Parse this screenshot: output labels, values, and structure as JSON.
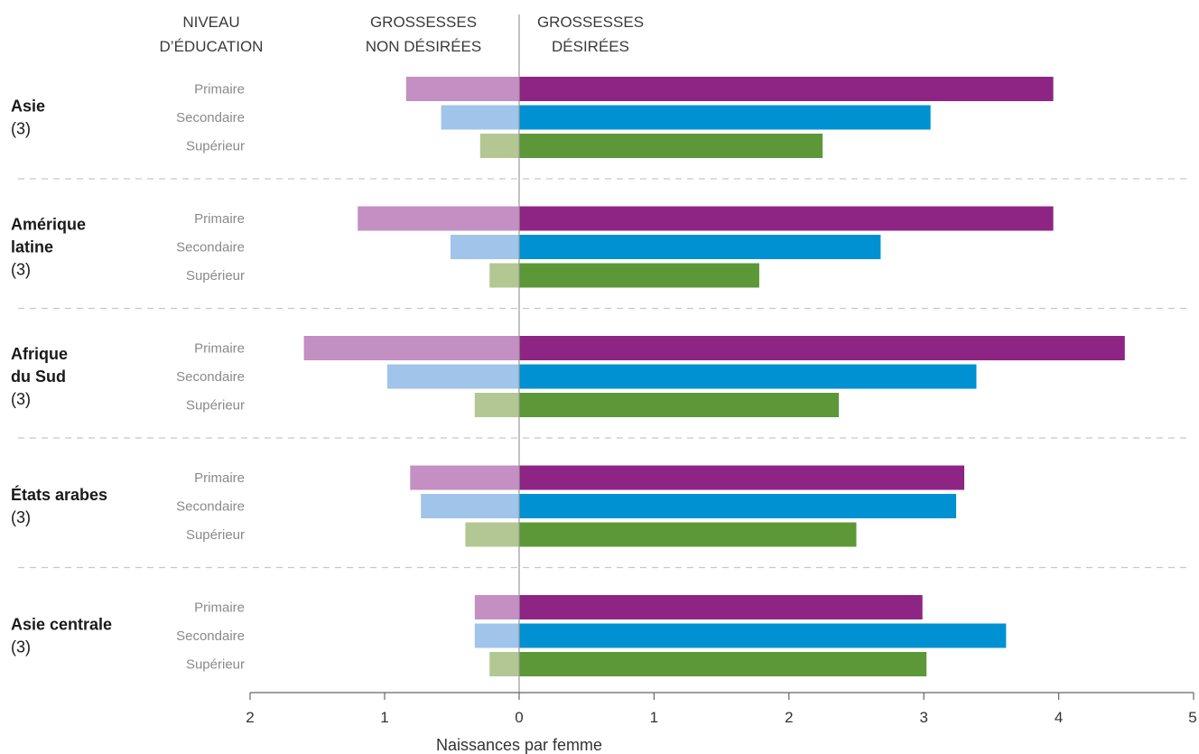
{
  "chart_data": {
    "type": "bar",
    "headers": {
      "education": [
        "NIVEAU",
        "D’ÉDUCATION"
      ],
      "unwanted": [
        "GROSSESSES",
        "NON DÉSIRÉES"
      ],
      "wanted": [
        "GROSSESSES",
        "DÉSIRÉES"
      ]
    },
    "xlabel": "Naissances par femme",
    "left_ticks": [
      "2",
      "1",
      "0"
    ],
    "right_ticks": [
      "1",
      "2",
      "3",
      "4",
      "5"
    ],
    "xlim_unwanted": [
      0,
      2
    ],
    "xlim_wanted": [
      0,
      5
    ],
    "levels": [
      "Primaire",
      "Secondaire",
      "Supérieur"
    ],
    "level_colors": {
      "unwanted": [
        "#c48fc2",
        "#a0c4ea",
        "#b3c793"
      ],
      "wanted": [
        "#8e2585",
        "#0091d2",
        "#5c9837"
      ]
    },
    "groups": [
      {
        "region_lines": [
          "Asie"
        ],
        "count": "(3)",
        "unwanted": [
          0.84,
          0.58,
          0.29
        ],
        "wanted": [
          3.96,
          3.05,
          2.25
        ]
      },
      {
        "region_lines": [
          "Amérique",
          "latine"
        ],
        "count": "(3)",
        "unwanted": [
          1.2,
          0.51,
          0.22
        ],
        "wanted": [
          3.96,
          2.68,
          1.78
        ]
      },
      {
        "region_lines": [
          "Afrique",
          "du Sud"
        ],
        "count": "(3)",
        "unwanted": [
          1.6,
          0.98,
          0.33
        ],
        "wanted": [
          4.49,
          3.39,
          2.37
        ]
      },
      {
        "region_lines": [
          "États arabes"
        ],
        "count": "(3)",
        "unwanted": [
          0.81,
          0.73,
          0.4
        ],
        "wanted": [
          3.3,
          3.24,
          2.5
        ]
      },
      {
        "region_lines": [
          "Asie centrale"
        ],
        "count": "(3)",
        "unwanted": [
          0.33,
          0.33,
          0.22
        ],
        "wanted": [
          2.99,
          3.61,
          3.02
        ]
      }
    ]
  }
}
